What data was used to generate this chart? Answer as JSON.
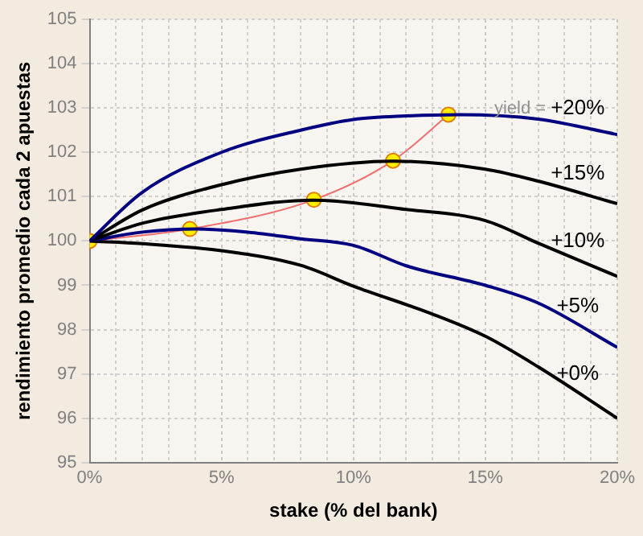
{
  "chart_data": {
    "type": "line",
    "xlabel": "stake (% del bank)",
    "ylabel": "rendimiento promedio cada 2 apuestas",
    "annotations": [
      "yield ="
    ],
    "grid": true,
    "xlim": [
      0,
      20
    ],
    "ylim": [
      95,
      105
    ],
    "xticks": [
      {
        "value": 0,
        "label": "0%"
      },
      {
        "value": 1,
        "label": null
      },
      {
        "value": 2,
        "label": null
      },
      {
        "value": 3,
        "label": null
      },
      {
        "value": 4,
        "label": null
      },
      {
        "value": 5,
        "label": "5%"
      },
      {
        "value": 6,
        "label": null
      },
      {
        "value": 7,
        "label": null
      },
      {
        "value": 8,
        "label": null
      },
      {
        "value": 9,
        "label": null
      },
      {
        "value": 10,
        "label": "10%"
      },
      {
        "value": 11,
        "label": null
      },
      {
        "value": 12,
        "label": null
      },
      {
        "value": 13,
        "label": null
      },
      {
        "value": 14,
        "label": null
      },
      {
        "value": 15,
        "label": "15%"
      },
      {
        "value": 16,
        "label": null
      },
      {
        "value": 17,
        "label": null
      },
      {
        "value": 18,
        "label": null
      },
      {
        "value": 19,
        "label": null
      },
      {
        "value": 20,
        "label": "20%"
      }
    ],
    "yticks": [
      95,
      96,
      97,
      98,
      99,
      100,
      101,
      102,
      103,
      104,
      105
    ],
    "series": [
      {
        "name": "+20%",
        "color": "#000080",
        "marker": "none",
        "x": [
          0,
          2,
          5,
          8,
          10,
          12,
          14,
          17,
          20
        ],
        "values": [
          100,
          101.1,
          102.0,
          102.5,
          102.74,
          102.82,
          102.85,
          102.75,
          102.4
        ]
      },
      {
        "name": "+15%",
        "color": "#000000",
        "marker": "none",
        "x": [
          0,
          2,
          5,
          8,
          11.5,
          15,
          17,
          20
        ],
        "values": [
          100,
          100.7,
          101.27,
          101.62,
          101.8,
          101.62,
          101.35,
          100.84
        ]
      },
      {
        "name": "+10%",
        "color": "#000000",
        "marker": "none",
        "x": [
          0,
          2,
          5,
          8.5,
          12,
          15,
          17,
          20
        ],
        "values": [
          100,
          100.4,
          100.71,
          100.92,
          100.71,
          100.46,
          99.95,
          99.2
        ]
      },
      {
        "name": "+5%",
        "color": "#000080",
        "marker": "none",
        "x": [
          0,
          2,
          4,
          6,
          8,
          10,
          12,
          15,
          17,
          20
        ],
        "values": [
          100,
          100.2,
          100.27,
          100.2,
          100.05,
          99.9,
          99.44,
          99.0,
          98.6,
          97.6
        ]
      },
      {
        "name": "+0%",
        "color": "#000000",
        "marker": "none",
        "x": [
          0,
          2,
          5,
          8,
          10,
          13,
          15,
          17,
          20
        ],
        "values": [
          100,
          99.94,
          99.78,
          99.45,
          98.98,
          98.35,
          97.85,
          97.16,
          96.0
        ]
      },
      {
        "color": "#f07070",
        "marker": "circle",
        "x": [
          0,
          3.8,
          8.5,
          11.5,
          13.6
        ],
        "values": [
          100,
          100.27,
          100.93,
          101.81,
          102.85
        ]
      }
    ]
  }
}
